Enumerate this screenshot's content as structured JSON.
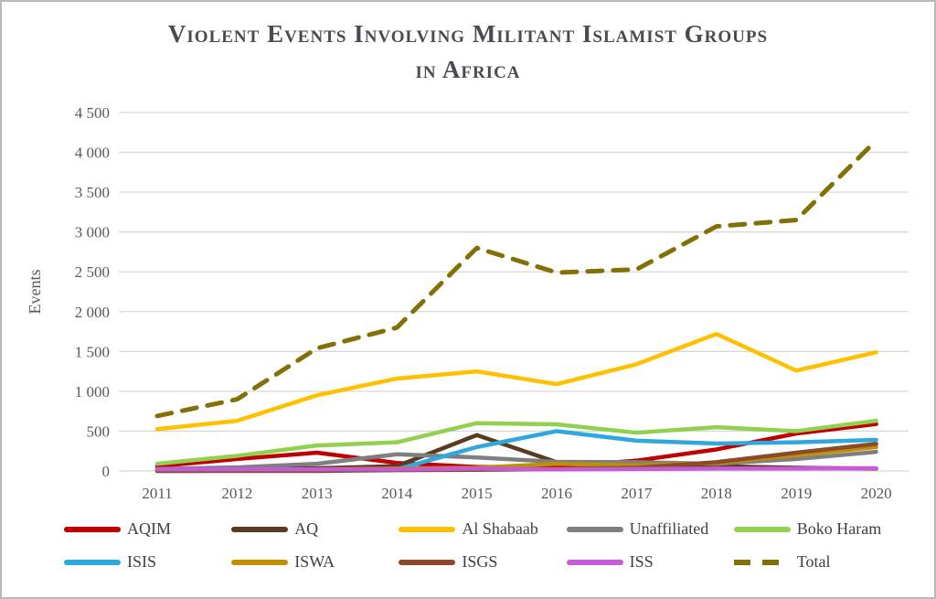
{
  "title": {
    "line1": "Violent Events Involving Militant Islamist Groups",
    "line2": "in Africa"
  },
  "chart_data": {
    "type": "line",
    "x": [
      2011,
      2012,
      2013,
      2014,
      2015,
      2016,
      2017,
      2018,
      2019,
      2020
    ],
    "xlabel": "",
    "ylabel": "Events",
    "ylim": [
      0,
      4500
    ],
    "ytick_step": 500,
    "ytick_labels": [
      "0",
      "500",
      "1 000",
      "1 500",
      "2 000",
      "2 500",
      "3 000",
      "3 500",
      "4 000",
      "4 500"
    ],
    "grid": true,
    "legend_position": "bottom",
    "series": [
      {
        "name": "AQIM",
        "color": "#c00000",
        "dashed": false,
        "values": [
          60,
          150,
          230,
          100,
          50,
          50,
          130,
          270,
          470,
          590
        ]
      },
      {
        "name": "AQ",
        "color": "#5c3a21",
        "dashed": false,
        "values": [
          20,
          25,
          35,
          60,
          450,
          110,
          80,
          60,
          40,
          30
        ]
      },
      {
        "name": "Al Shabaab",
        "color": "#ffc000",
        "dashed": false,
        "values": [
          525,
          630,
          950,
          1160,
          1250,
          1090,
          1340,
          1720,
          1260,
          1490
        ]
      },
      {
        "name": "Unaffiliated",
        "color": "#7f7f7f",
        "dashed": false,
        "values": [
          25,
          45,
          90,
          210,
          170,
          115,
          110,
          90,
          150,
          240
        ]
      },
      {
        "name": "Boko Haram",
        "color": "#92d050",
        "dashed": false,
        "values": [
          90,
          190,
          320,
          360,
          600,
          585,
          480,
          550,
          500,
          630
        ]
      },
      {
        "name": "ISIS",
        "color": "#2fa8dc",
        "dashed": false,
        "values": [
          0,
          5,
          10,
          20,
          300,
          500,
          380,
          345,
          360,
          390
        ]
      },
      {
        "name": "ISWA",
        "color": "#bf9000",
        "dashed": false,
        "values": [
          10,
          15,
          20,
          30,
          40,
          90,
          70,
          100,
          200,
          300
        ]
      },
      {
        "name": "ISGS",
        "color": "#8b4a2a",
        "dashed": false,
        "values": [
          0,
          0,
          0,
          10,
          15,
          25,
          40,
          110,
          230,
          340
        ]
      },
      {
        "name": "ISS",
        "color": "#c55bd6",
        "dashed": false,
        "values": [
          20,
          20,
          20,
          20,
          30,
          20,
          25,
          30,
          30,
          35
        ]
      },
      {
        "name": "Total",
        "color": "#847008",
        "dashed": true,
        "values": [
          690,
          900,
          1540,
          1800,
          2800,
          2490,
          2530,
          3070,
          3150,
          4150
        ]
      }
    ]
  },
  "colors": {
    "title_text": "#4a4a52",
    "axis_text": "#595959",
    "gridline": "#d8d8d8",
    "frame_border": "#b9b9b9",
    "background": "#ffffff"
  }
}
